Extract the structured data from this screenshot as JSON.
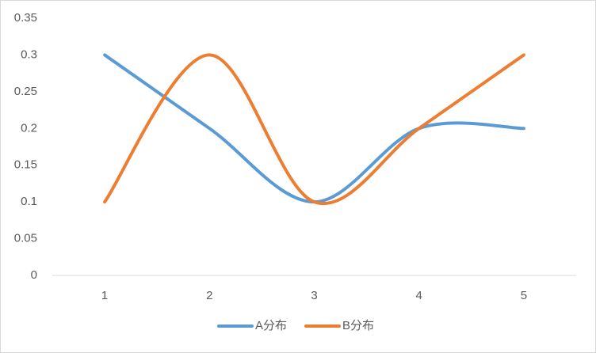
{
  "chart_data": {
    "type": "line",
    "smooth": true,
    "categories": [
      "1",
      "2",
      "3",
      "4",
      "5"
    ],
    "series": [
      {
        "name": "A分布",
        "color": "#5b9bd5",
        "values": [
          0.3,
          0.2,
          0.1,
          0.2,
          0.2
        ]
      },
      {
        "name": "B分布",
        "color": "#ed7d31",
        "values": [
          0.1,
          0.3,
          0.1,
          0.2,
          0.3
        ]
      }
    ],
    "ylim": [
      0,
      0.35
    ],
    "yticks": [
      0,
      0.05,
      0.1,
      0.15,
      0.2,
      0.25,
      0.3,
      0.35
    ],
    "grid": false,
    "legend": "bottom"
  }
}
